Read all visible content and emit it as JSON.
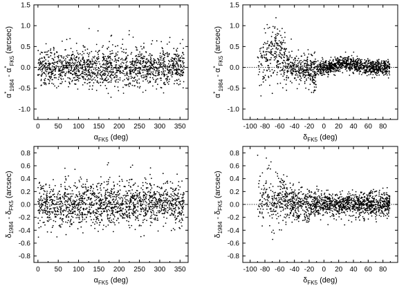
{
  "chart_data": [
    {
      "id": "p1",
      "type": "scatter",
      "xlabel": {
        "base": "α",
        "sub": "FK5",
        "tail": " (deg)"
      },
      "ylabel": {
        "base": "α",
        "sup1": "*",
        "sub1": "1984",
        "minus": " - ",
        "base2": "α",
        "sup2": "*",
        "sub2": "FK5",
        "tail": " (arcsec)"
      },
      "xlim": [
        -10,
        370
      ],
      "ylim": [
        -1.25,
        1.5
      ],
      "xticks": [
        0,
        50,
        100,
        150,
        200,
        250,
        300,
        350
      ],
      "yticks": [
        -1.0,
        -0.5,
        0.0,
        0.5,
        1.0,
        1.5
      ],
      "ytick_labels": [
        "-1.0",
        "-0.5",
        "0.0",
        "0.5",
        "1.0",
        "1.5"
      ],
      "reference_line": 0,
      "n_points": 1500,
      "pattern": "uniform_ra",
      "spread": 0.22
    },
    {
      "id": "p2",
      "type": "scatter",
      "xlabel": {
        "base": "δ",
        "sub": "FK5",
        "tail": " (deg)"
      },
      "ylabel": {
        "base": "α",
        "sup1": "*",
        "sub1": "1984",
        "minus": " - ",
        "base2": "α",
        "sup2": "*",
        "sub2": "FK5",
        "tail": " (arcsec)"
      },
      "xlim": [
        -110,
        100
      ],
      "ylim": [
        -1.25,
        1.5
      ],
      "xticks": [
        -100,
        -80,
        -60,
        -40,
        -20,
        0,
        20,
        40,
        60,
        80
      ],
      "yticks": [
        -1.0,
        -0.5,
        0.0,
        0.5,
        1.0,
        1.5
      ],
      "ytick_labels": [
        "-1.0",
        "-0.5",
        "0.0",
        "0.5",
        "1.0",
        "1.5"
      ],
      "reference_line": 0,
      "n_points": 1500,
      "pattern": "dec_alpha",
      "spread": 0.15
    },
    {
      "id": "p3",
      "type": "scatter",
      "xlabel": {
        "base": "α",
        "sub": "FK5",
        "tail": " (deg)"
      },
      "ylabel": {
        "base": "δ",
        "sup1": "",
        "sub1": "1984",
        "minus": " - ",
        "base2": "δ",
        "sup2": "",
        "sub2": "FK5",
        "tail": " (arcsec)"
      },
      "xlim": [
        -10,
        370
      ],
      "ylim": [
        -0.9,
        0.9
      ],
      "xticks": [
        0,
        50,
        100,
        150,
        200,
        250,
        300,
        350
      ],
      "yticks": [
        -0.8,
        -0.6,
        -0.4,
        -0.2,
        0.0,
        0.2,
        0.4,
        0.6,
        0.8
      ],
      "ytick_labels": [
        "-0.8",
        "-0.6",
        "-0.4",
        "-0.2",
        "0.0",
        "0.2",
        "0.4",
        "0.6",
        "0.8"
      ],
      "reference_line": 0,
      "n_points": 1500,
      "pattern": "uniform_ra",
      "spread": 0.16
    },
    {
      "id": "p4",
      "type": "scatter",
      "xlabel": {
        "base": "δ",
        "sub": "FK5",
        "tail": " (deg)"
      },
      "ylabel": {
        "base": "δ",
        "sup1": "",
        "sub1": "1984",
        "minus": " - ",
        "base2": "δ",
        "sup2": "",
        "sub2": "FK5",
        "tail": " (arcsec)"
      },
      "xlim": [
        -110,
        100
      ],
      "ylim": [
        -0.9,
        0.9
      ],
      "xticks": [
        -100,
        -80,
        -60,
        -40,
        -20,
        0,
        20,
        40,
        60,
        80
      ],
      "yticks": [
        -0.8,
        -0.6,
        -0.4,
        -0.2,
        0.0,
        0.2,
        0.4,
        0.6,
        0.8
      ],
      "ytick_labels": [
        "-0.8",
        "-0.6",
        "-0.4",
        "-0.2",
        "0.0",
        "0.2",
        "0.4",
        "0.6",
        "0.8"
      ],
      "reference_line": 0,
      "n_points": 1500,
      "pattern": "dec_delta",
      "spread": 0.14
    }
  ]
}
